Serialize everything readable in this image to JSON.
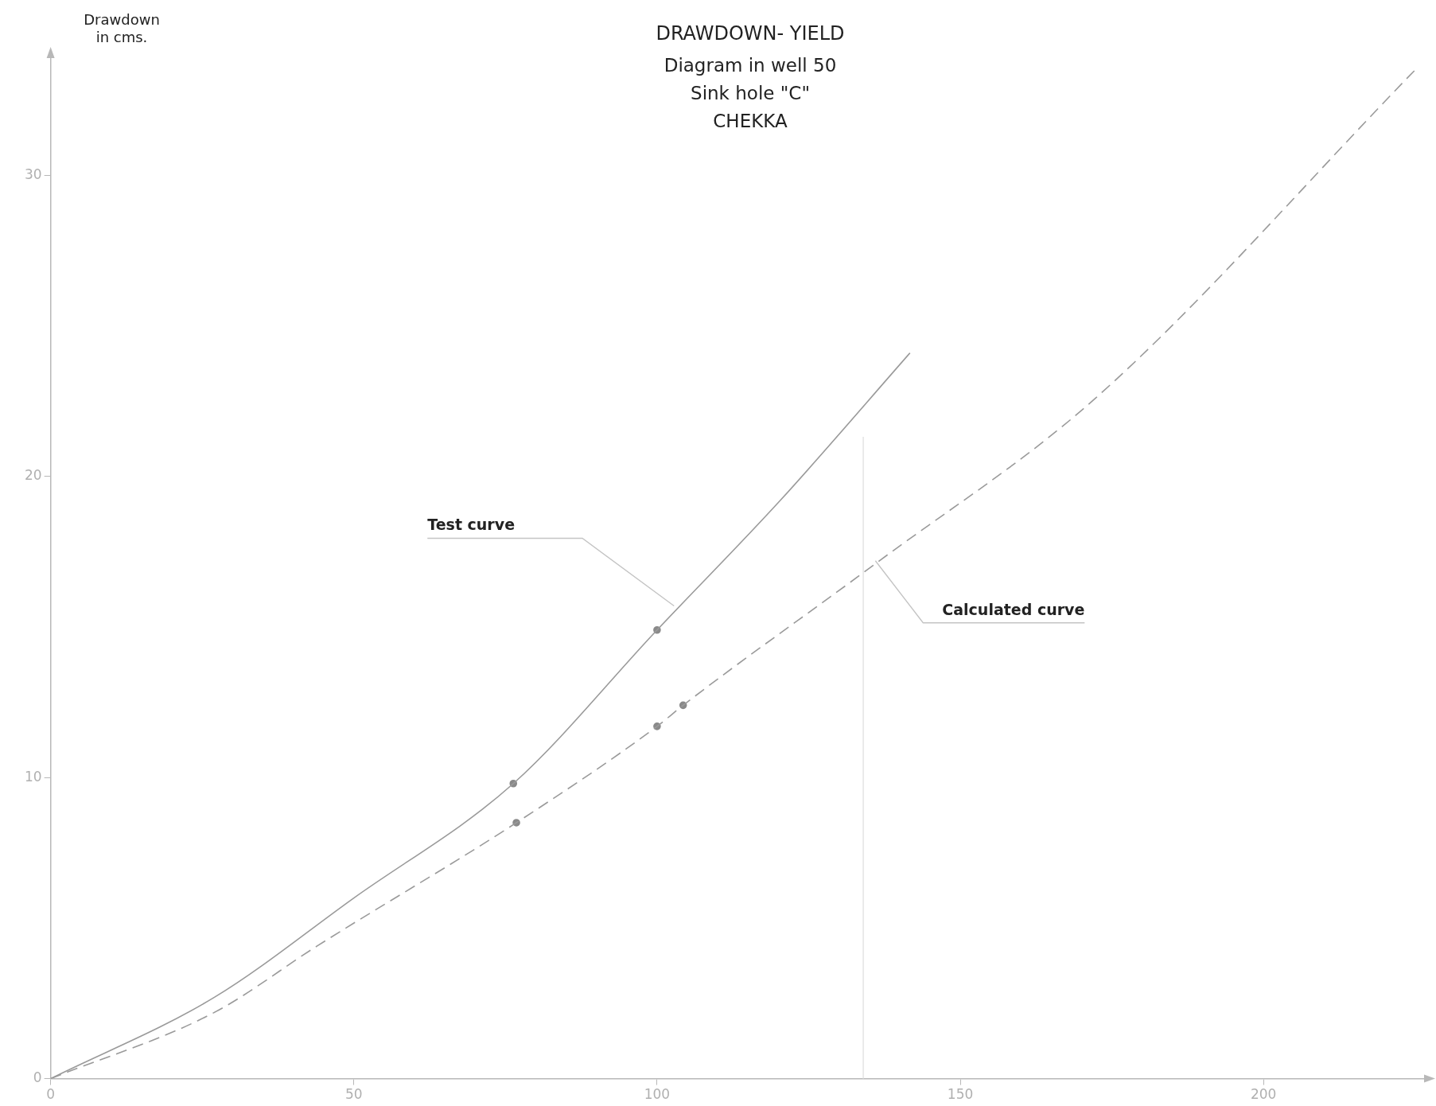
{
  "chart_data": {
    "type": "line",
    "title": "DRAWDOWN- YIELD",
    "subtitle": "Diagram in well 50\nSink hole \"C\"\nCHEKKA",
    "ylabel": "Drawdown\nin cms.",
    "xlim": [
      0,
      227
    ],
    "ylim": [
      0,
      34
    ],
    "xticks": [
      0,
      50,
      100,
      150,
      200
    ],
    "yticks": [
      0,
      10,
      20,
      30
    ],
    "grid": false,
    "legend": false,
    "series": [
      {
        "color": "#9a9a9a",
        "line_style": "solid",
        "marker": "none",
        "x": [
          0,
          27,
          50,
          76.3,
          100,
          120.3,
          141.7
        ],
        "values": [
          0,
          2.7,
          6.0,
          9.8,
          14.9,
          19.2,
          24.1
        ]
      },
      {
        "color": "#9a9a9a",
        "line_style": "dashed",
        "marker": "none",
        "x": [
          0,
          27,
          43.9,
          76.8,
          100,
          104.3,
          136,
          172.3,
          225
        ],
        "values": [
          0,
          2.2,
          4.4,
          8.5,
          11.7,
          12.4,
          17.1,
          22.6,
          33.5
        ]
      },
      {
        "type": "scatter",
        "color": "#8a8a8a",
        "marker": "circle",
        "x": [
          76.3,
          100
        ],
        "values": [
          9.8,
          14.9
        ]
      },
      {
        "type": "scatter",
        "color": "#8a8a8a",
        "marker": "circle",
        "x": [
          76.8,
          100,
          104.3
        ],
        "values": [
          8.5,
          11.7,
          12.4
        ]
      }
    ],
    "ref_lines": [
      {
        "axis": "x",
        "value": 134,
        "color": "#e4e4e4",
        "line_style": "solid"
      }
    ],
    "annotations": [
      {
        "text": "Test curve",
        "x": 102.8,
        "y": 15.7
      },
      {
        "text": "Calculated curve",
        "x": 136,
        "y": 17.2
      }
    ]
  }
}
